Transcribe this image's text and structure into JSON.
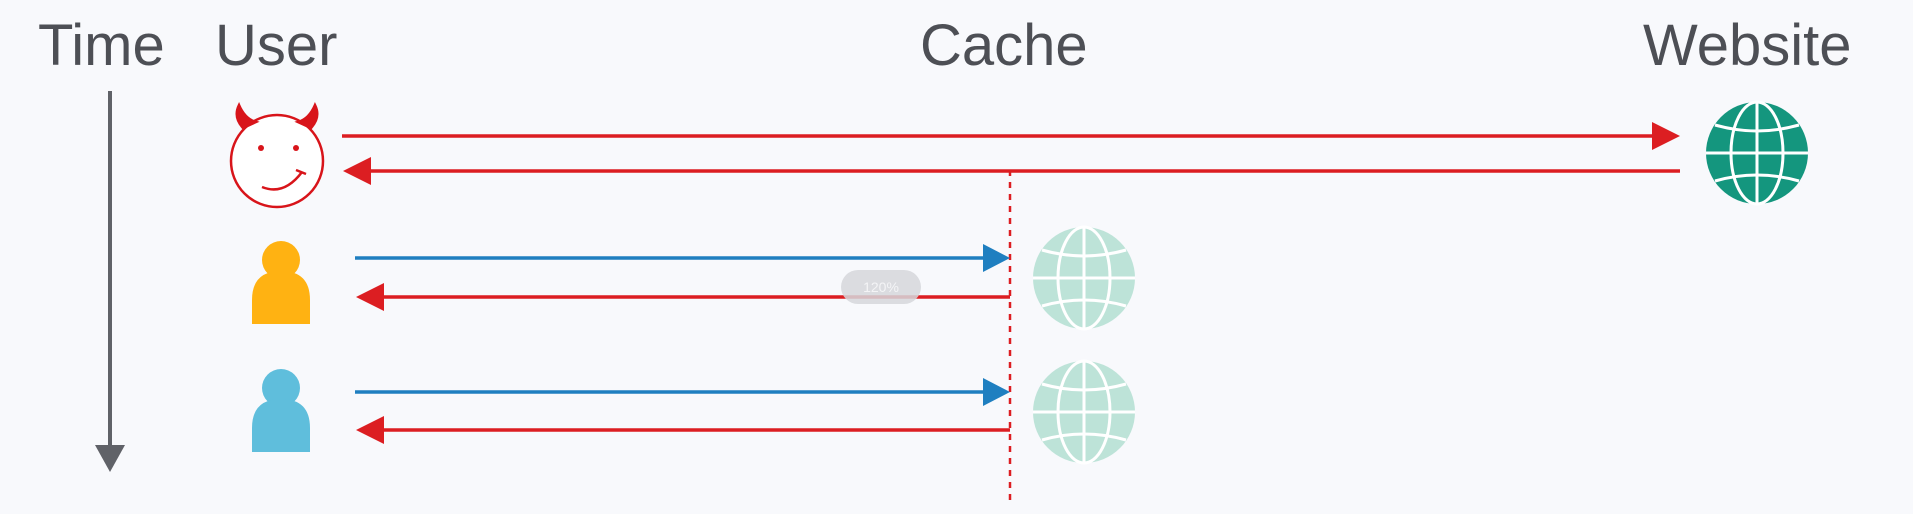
{
  "headers": {
    "time": "Time",
    "user": "User",
    "cache": "Cache",
    "website": "Website"
  },
  "zoom": "120%",
  "colors": {
    "label": "#4d4f55",
    "attacker": "#d8141a",
    "request_blue": "#1f7fc0",
    "response_red": "#dc1e22",
    "victim_orange": "#ffb212",
    "victim_blue": "#5fbedc",
    "website_globe": "#14967e",
    "cached_globe": "#bde3d8",
    "time_axis": "#606268"
  },
  "icons": {
    "attacker": "devil-face-icon",
    "victim_1": "person-icon",
    "victim_2": "person-icon",
    "website": "globe-icon",
    "cached_copy": "globe-icon"
  }
}
